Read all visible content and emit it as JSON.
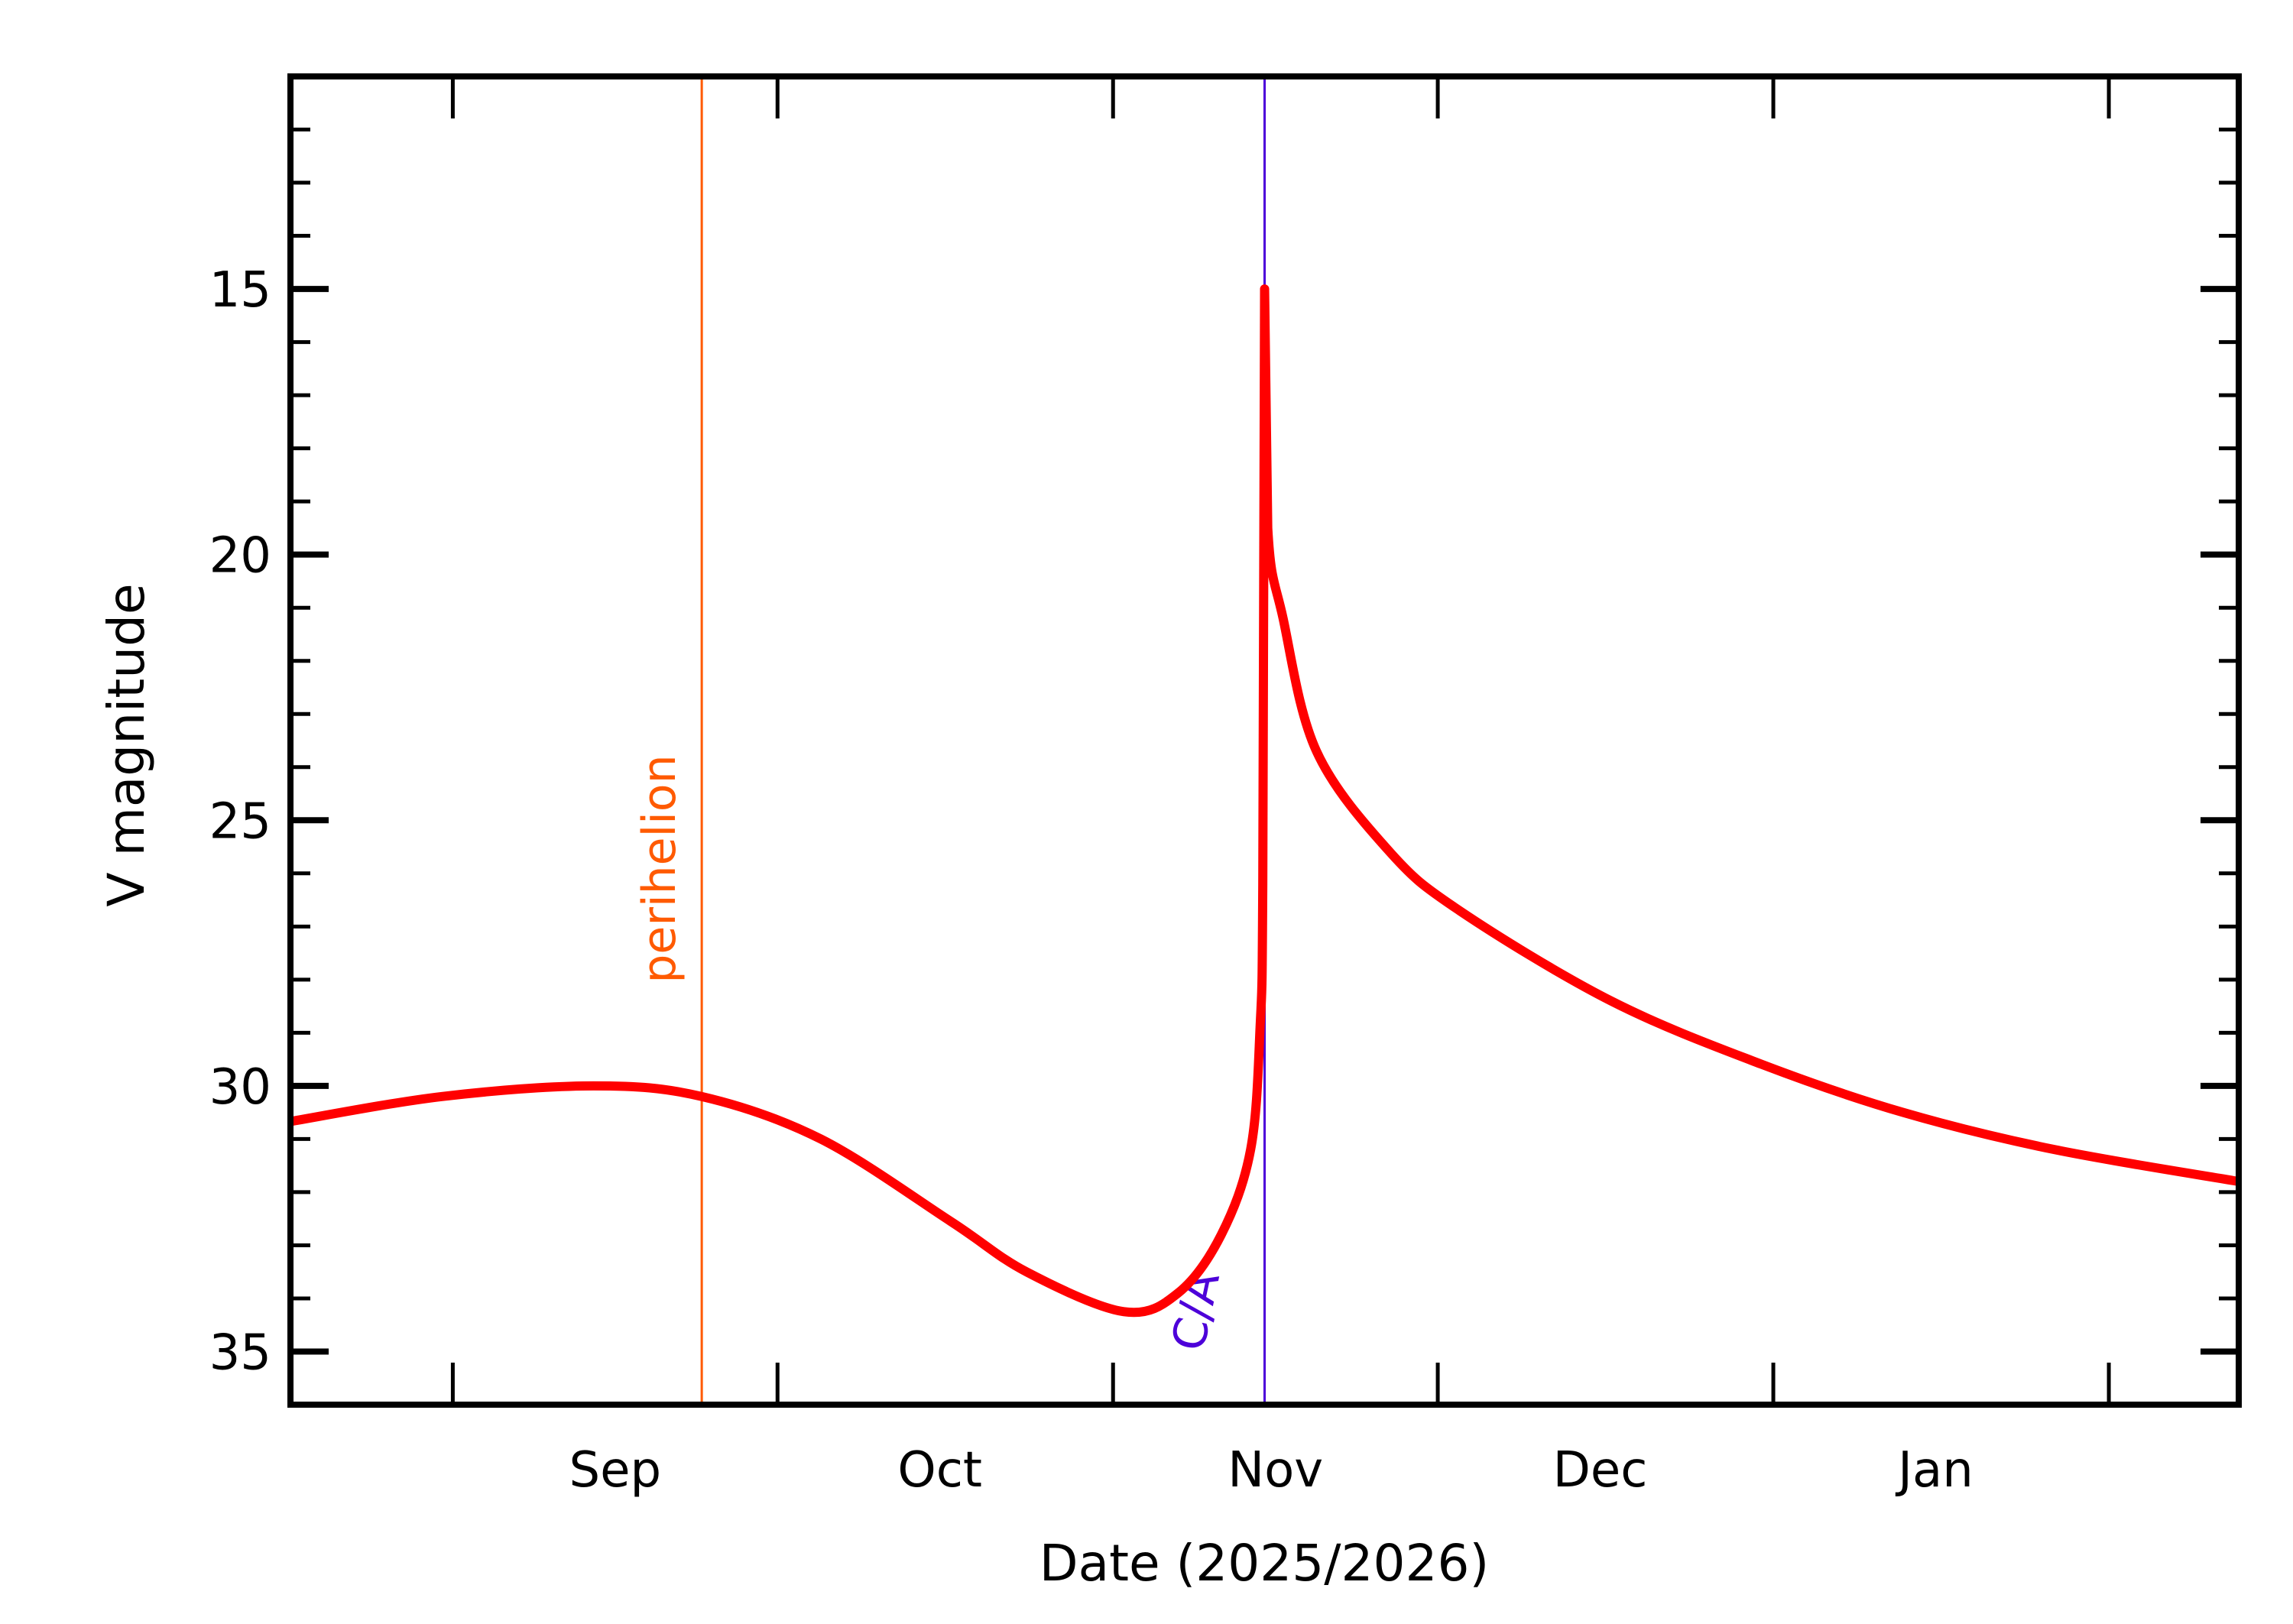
{
  "chart_data": {
    "type": "line",
    "title": "",
    "xlabel": "Date (2025/2026)",
    "ylabel": "V magnitude",
    "xlim": [
      "2025-08-17",
      "2026-02-13"
    ],
    "ylim": [
      36,
      11
    ],
    "y_inverted": true,
    "grid": false,
    "x_ticks": [
      "2025-09-01",
      "2025-10-01",
      "2025-11-01",
      "2025-12-01",
      "2026-01-01",
      "2026-02-01"
    ],
    "x_tick_labels": [
      {
        "label": "Sep",
        "date": "2025-09-16"
      },
      {
        "label": "Oct",
        "date": "2025-10-16"
      },
      {
        "label": "Nov",
        "date": "2025-11-16"
      },
      {
        "label": "Dec",
        "date": "2025-12-16"
      },
      {
        "label": "Jan",
        "date": "2026-01-16"
      }
    ],
    "y_major_ticks": [
      15,
      20,
      25,
      30,
      35
    ],
    "y_tick_labels": [
      "15",
      "20",
      "25",
      "30",
      "35"
    ],
    "y_minor_step": 1,
    "series": [
      {
        "color": "#ff0000",
        "x": [
          "2025-08-17T00:00",
          "2025-08-31T00:00",
          "2025-09-14T00:00",
          "2025-09-24T00:00",
          "2025-10-05T00:00",
          "2025-10-17T00:00",
          "2025-10-24T00:00",
          "2025-11-02T00:00",
          "2025-11-07T00:00",
          "2025-11-11T00:00",
          "2025-11-13T17:00",
          "2025-11-14T14:00",
          "2025-11-14T20:00",
          "2025-11-15T00:00",
          "2025-11-15T07:00",
          "2025-11-16T17:00",
          "2025-11-19T19:00",
          "2025-11-26T14:00",
          "2025-12-03T00:00",
          "2025-12-17T00:00",
          "2025-12-31T00:00",
          "2026-01-13T00:00",
          "2026-01-27T00:00",
          "2026-02-13T00:00"
        ],
        "y": [
          30.67,
          30.2,
          30.0,
          30.2,
          31.0,
          32.55,
          33.5,
          34.25,
          33.9,
          32.8,
          31.2,
          28.9,
          26.2,
          15.0,
          19.5,
          21.2,
          23.7,
          25.6,
          26.7,
          28.4,
          29.6,
          30.5,
          31.2,
          31.8
        ]
      }
    ],
    "annotations": [
      {
        "label": "perihelion",
        "date": "2025-09-24",
        "color": "#ff5a00",
        "type": "vertical-line"
      },
      {
        "label": "C/A",
        "date": "2025-11-15",
        "color": "#4d00d9",
        "type": "vertical-line"
      }
    ]
  }
}
